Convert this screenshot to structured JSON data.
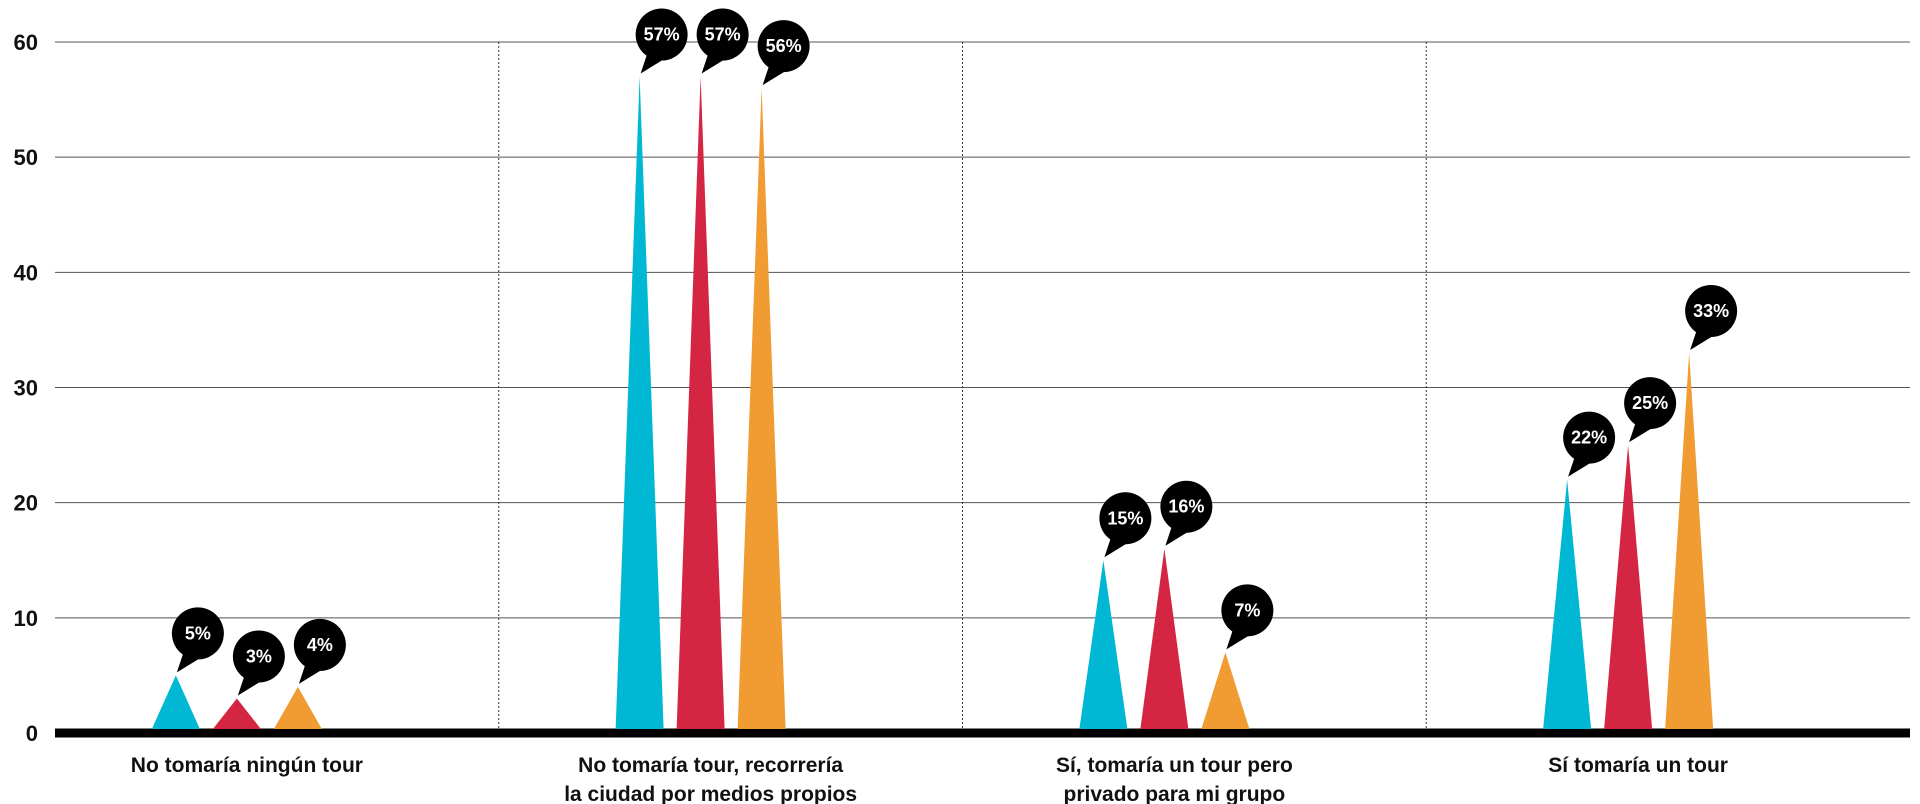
{
  "chart_data": {
    "type": "bar",
    "categories": [
      [
        "No tomaría ningún tour"
      ],
      [
        "No tomaría tour, recorrería",
        "la ciudad por medios propios"
      ],
      [
        "Sí, tomaría un tour pero",
        "privado para mi grupo"
      ],
      [
        "Sí tomaría un tour"
      ]
    ],
    "series": [
      {
        "color": "#00b8d4",
        "values": [
          5,
          57,
          15,
          22
        ]
      },
      {
        "color": "#d42642",
        "values": [
          3,
          57,
          16,
          25
        ]
      },
      {
        "color": "#f09c33",
        "values": [
          4,
          56,
          7,
          33
        ]
      }
    ],
    "data_labels": [
      [
        "5%",
        "57%",
        "15%",
        "22%"
      ],
      [
        "3%",
        "57%",
        "16%",
        "25%"
      ],
      [
        "4%",
        "56%",
        "7%",
        "33%"
      ]
    ],
    "yticks": [
      "0",
      "10",
      "20",
      "30",
      "40",
      "50",
      "60"
    ],
    "ylim": [
      0,
      60
    ],
    "grid": true,
    "legend": "none",
    "title": "",
    "xlabel": "",
    "ylabel": ""
  }
}
